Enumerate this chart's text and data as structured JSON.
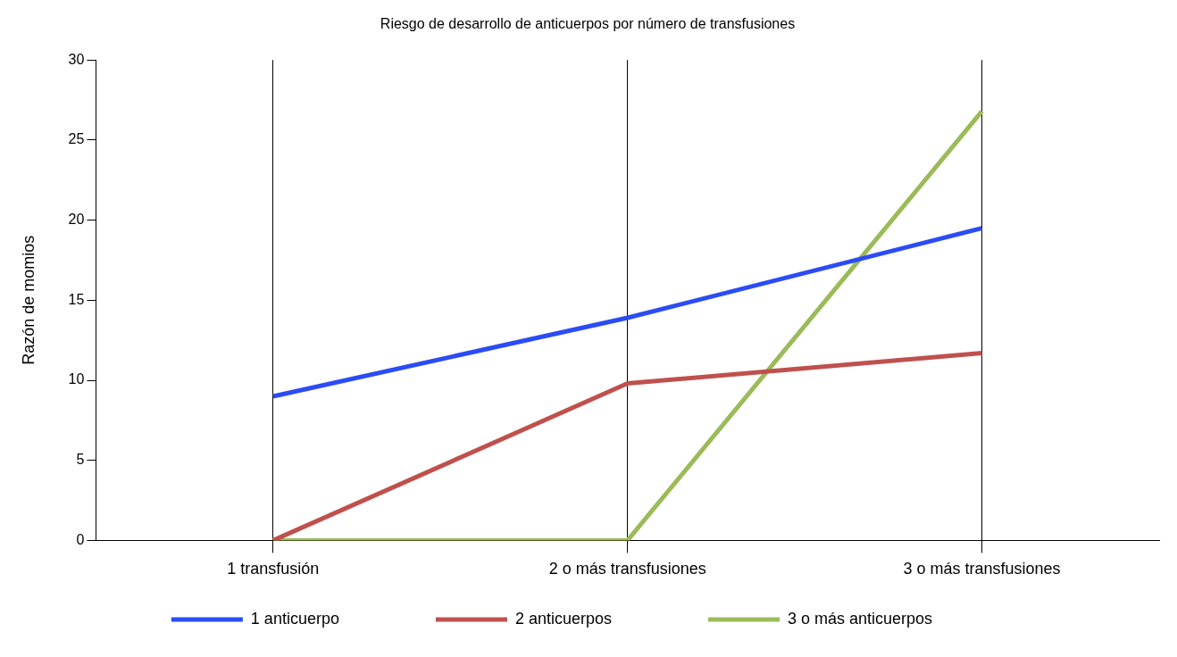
{
  "chart_data": {
    "type": "line",
    "title": "Riesgo de desarrollo de anticuerpos por número de transfusiones",
    "ylabel": "Razón de momios",
    "categories": [
      "1 transfusión",
      "2 o más transfusiones",
      "3 o más transfusiones"
    ],
    "series": [
      {
        "name": "1 anticuerpo",
        "color": "#2b4cf5",
        "values": [
          9,
          13.9,
          19.5
        ]
      },
      {
        "name": "2 anticuerpos",
        "color": "#c0504d",
        "values": [
          0,
          9.8,
          11.7
        ]
      },
      {
        "name": "3 o más anticuerpos",
        "color": "#9bbb59",
        "values": [
          0,
          0,
          26.8
        ]
      }
    ],
    "ylim": [
      0,
      30
    ],
    "yticks": [
      0,
      5,
      10,
      15,
      20,
      25,
      30
    ],
    "grid": "x",
    "legend": "bottom",
    "marker": "none",
    "line_style": "solid"
  }
}
